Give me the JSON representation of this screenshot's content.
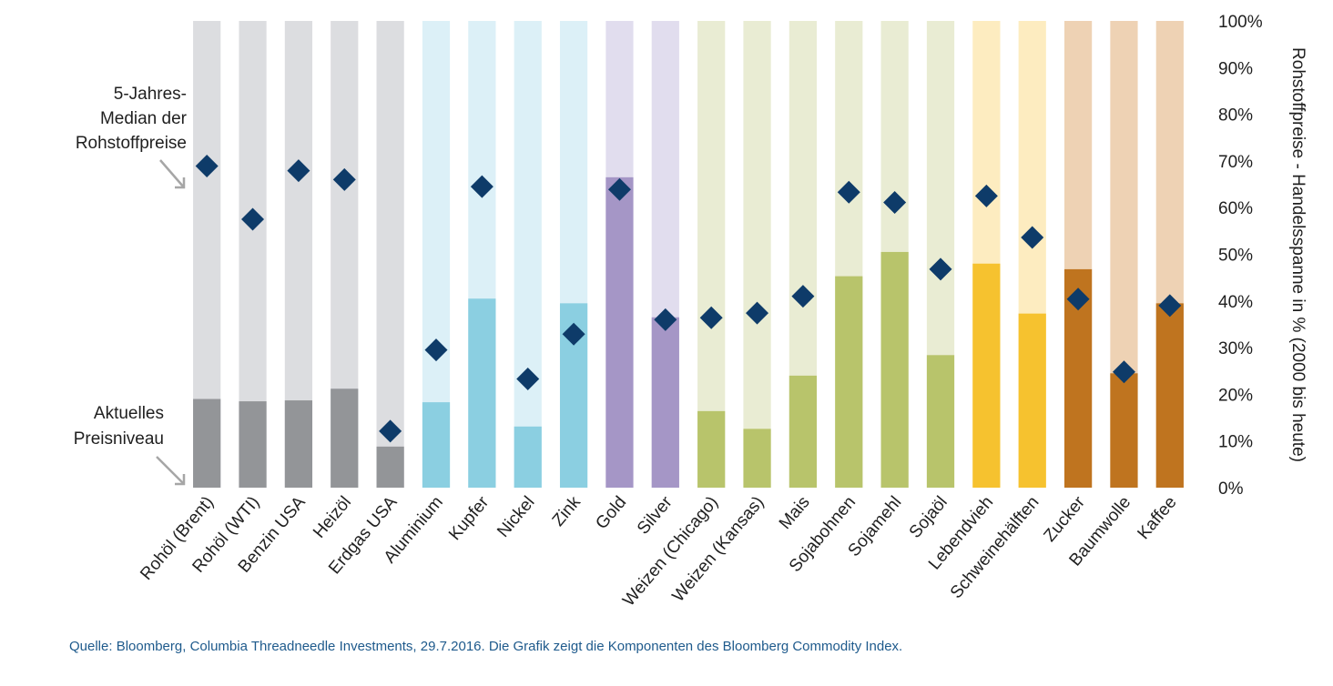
{
  "chart_data": {
    "type": "bar",
    "categories": [
      "Rohöl (Brent)",
      "Rohöl (WTI)",
      "Benzin USA",
      "Heizöl",
      "Erdgas USA",
      "Aluminium",
      "Kupfer",
      "Nickel",
      "Zink",
      "Gold",
      "Silver",
      "Weizen (Chicago)",
      "Weizen (Kansas)",
      "Mais",
      "Sojabohnen",
      "Sojamehl",
      "Sojaöl",
      "Lebendvieh",
      "Schweinehälften",
      "Zucker",
      "Baumwolle",
      "Kaffee"
    ],
    "series": [
      {
        "name": "Aktuelles Preisniveau",
        "values": [
          19,
          18.5,
          18.7,
          21.2,
          8.8,
          18.3,
          40.5,
          13.1,
          39.5,
          66.5,
          36.5,
          16.4,
          12.6,
          24,
          45.3,
          50.5,
          28.4,
          48,
          37.3,
          46.8,
          24.5,
          39.5
        ]
      },
      {
        "name": "5-Jahres-Median der Rohstoffpreise",
        "values": [
          68.9,
          57.5,
          67.9,
          66,
          12.1,
          29.5,
          64.5,
          23.3,
          32.9,
          63.9,
          36,
          36.4,
          37.4,
          41,
          63.3,
          61.1,
          46.8,
          62.5,
          53.6,
          40.4,
          24.8,
          39
        ]
      }
    ],
    "group_colors": {
      "energy": {
        "light": "#dcdde0",
        "dark": "#939598"
      },
      "industrial_metals": {
        "light": "#dcf0f7",
        "dark": "#8bcfe1"
      },
      "precious_metals": {
        "light": "#e1ddee",
        "dark": "#a596c6"
      },
      "agriculture": {
        "light": "#e9ecd3",
        "dark": "#b8c46b"
      },
      "livestock": {
        "light": "#fdecc0",
        "dark": "#f6c22f"
      },
      "softs": {
        "light": "#eed2b4",
        "dark": "#bf741f"
      }
    },
    "category_groups": [
      "energy",
      "energy",
      "energy",
      "energy",
      "energy",
      "industrial_metals",
      "industrial_metals",
      "industrial_metals",
      "industrial_metals",
      "precious_metals",
      "precious_metals",
      "agriculture",
      "agriculture",
      "agriculture",
      "agriculture",
      "agriculture",
      "agriculture",
      "livestock",
      "livestock",
      "softs",
      "softs",
      "softs"
    ],
    "marker_color": "#0e3b69",
    "ylabel": "Rohstoffpreise - Handelsspanne in % (2000 bis heute)",
    "ylim": [
      0,
      100
    ],
    "yticks": [
      "0%",
      "10%",
      "20%",
      "30%",
      "40%",
      "50%",
      "60%",
      "70%",
      "80%",
      "90%",
      "100%"
    ],
    "y_axis_side": "right",
    "grid": false,
    "annotations": {
      "median": [
        "5-Jahres-",
        "Median der",
        "Rohstoffpreise"
      ],
      "current": [
        "Aktuelles",
        "Preisniveau"
      ]
    }
  },
  "source": "Quelle: Bloomberg, Columbia Threadneedle Investments, 29.7.2016. Die Grafik zeigt die Komponenten des Bloomberg Commodity Index."
}
